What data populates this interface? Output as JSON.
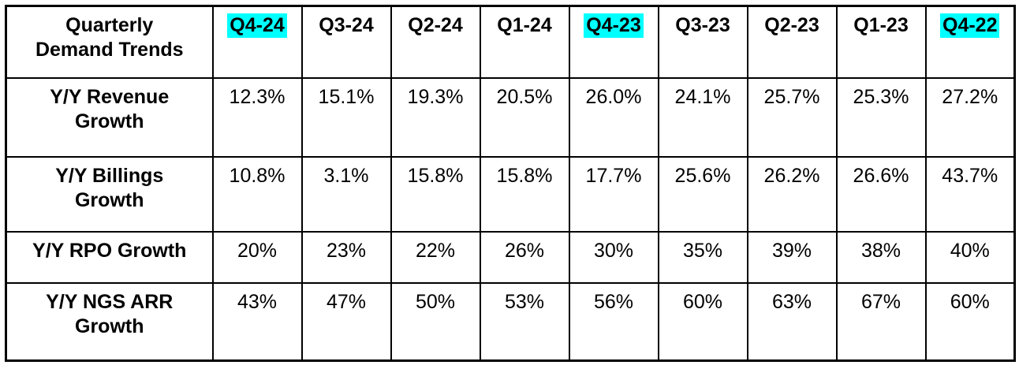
{
  "chart_data": {
    "type": "table",
    "title": "Quarterly Demand Trends",
    "corner_label": "Quarterly\nDemand Trends",
    "columns": [
      "Q4-24",
      "Q3-24",
      "Q2-24",
      "Q1-24",
      "Q4-23",
      "Q3-23",
      "Q2-23",
      "Q1-23",
      "Q4-22"
    ],
    "highlighted_columns_indices": [
      0,
      4,
      8
    ],
    "highlight_color": "#00ffff",
    "rows": [
      {
        "label": "Y/Y Revenue\nGrowth",
        "metric": "Y/Y Revenue Growth",
        "values": [
          "12.3%",
          "15.1%",
          "19.3%",
          "20.5%",
          "26.0%",
          "24.1%",
          "25.7%",
          "25.3%",
          "27.2%"
        ]
      },
      {
        "label": "Y/Y Billings\nGrowth",
        "metric": "Y/Y Billings Growth",
        "values": [
          "10.8%",
          "3.1%",
          "15.8%",
          "15.8%",
          "17.7%",
          "25.6%",
          "26.2%",
          "26.6%",
          "43.7%"
        ]
      },
      {
        "label": "Y/Y RPO Growth",
        "metric": "Y/Y RPO Growth",
        "values": [
          "20%",
          "23%",
          "22%",
          "26%",
          "30%",
          "35%",
          "39%",
          "38%",
          "40%"
        ]
      },
      {
        "label": "Y/Y NGS ARR\nGrowth",
        "metric": "Y/Y NGS ARR Growth",
        "values": [
          "43%",
          "47%",
          "50%",
          "53%",
          "56%",
          "60%",
          "63%",
          "67%",
          "60%"
        ]
      }
    ]
  }
}
